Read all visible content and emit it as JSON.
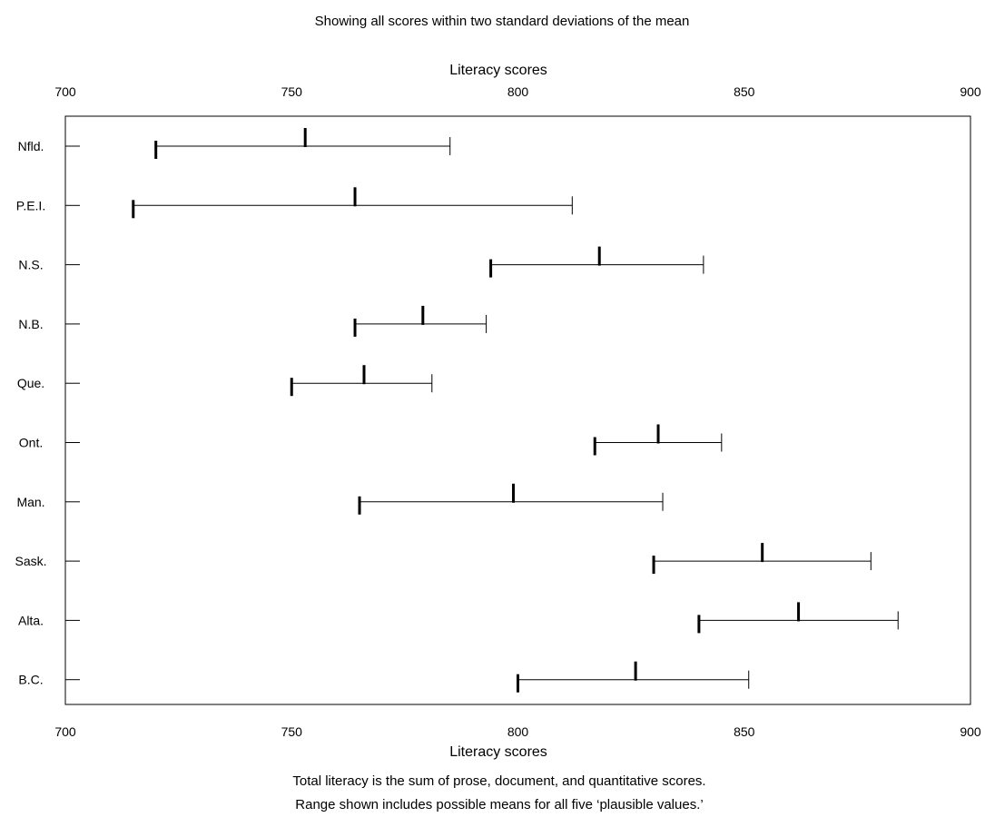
{
  "chart_data": {
    "type": "range",
    "subtitle": "Showing all scores within two standard deviations of the mean",
    "xlabel_top": "Literacy scores",
    "xlabel_bottom": "Literacy scores",
    "xlim": [
      700,
      900
    ],
    "xticks": [
      700,
      750,
      800,
      850,
      900
    ],
    "tick_labels": [
      "700",
      "750",
      "800",
      "850",
      "900"
    ],
    "categories": [
      "Nfld.",
      "P.E.I.",
      "N.S.",
      "N.B.",
      "Que.",
      "Ont.",
      "Man.",
      "Sask.",
      "Alta.",
      "B.C."
    ],
    "series": [
      {
        "low": [
          720,
          715,
          794,
          764,
          750,
          817,
          765,
          830,
          840,
          800
        ]
      },
      {
        "mean": [
          753,
          764,
          818,
          779,
          766,
          831,
          799,
          854,
          862,
          826
        ]
      },
      {
        "high": [
          785,
          812,
          841,
          793,
          781,
          845,
          832,
          878,
          884,
          851
        ]
      }
    ],
    "grid": false,
    "notes": [
      "Total literacy is the sum of prose, document, and quantitative scores.",
      "Range shown includes possible means for all five ‘plausible values.’"
    ]
  }
}
